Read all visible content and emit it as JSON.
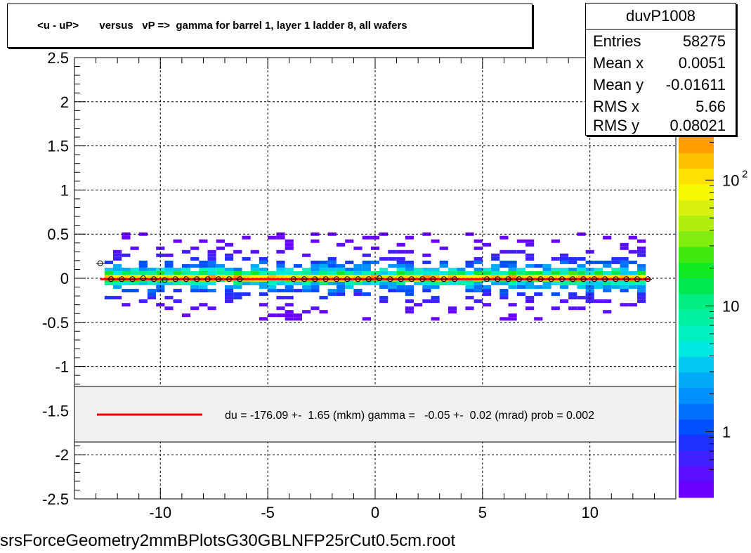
{
  "title": "<u - uP>       versus   vP =>  gamma for barrel 1, layer 1 ladder 8, all wafers",
  "stats": {
    "name": "duvP1008",
    "rows": [
      {
        "key": "Entries",
        "value": "58275"
      },
      {
        "key": "Mean x",
        "value": "0.0051"
      },
      {
        "key": "Mean y",
        "value": "-0.01611"
      },
      {
        "key": "RMS x",
        "value": "5.66"
      },
      {
        "key": "RMS y",
        "value": "0.08021"
      }
    ]
  },
  "fit_legend": "du = -176.09 +-  1.65 (mkm) gamma =   -0.05 +-  0.02 (mrad) prob = 0.002",
  "footer": "srsForceGeometry2mmBPlotsG30GBLNFP25rCut0.5cm.root",
  "colors": {
    "fit_line": "#ff0000",
    "legend_bg": "#f0f0f0",
    "grid": "#000000"
  },
  "chart_data": {
    "type": "heatmap",
    "title": "<u - uP>       versus   vP =>  gamma for barrel 1, layer 1 ladder 8, all wafers",
    "xlabel": "",
    "ylabel": "",
    "xlim": [
      -14,
      14
    ],
    "ylim": [
      -2.5,
      2.5
    ],
    "x_ticks": [
      -10,
      -5,
      0,
      5,
      10
    ],
    "y_ticks": [
      2.5,
      2,
      1.5,
      1,
      0.5,
      0,
      -0.5,
      -1,
      -1.5,
      -2,
      -2.5
    ],
    "grid": true,
    "z_scale": "log",
    "colorbar_ticks": [
      {
        "label": "1",
        "value": 1
      },
      {
        "label": "10",
        "value": 10
      },
      {
        "label": "10",
        "value": 100,
        "exponent": "2"
      }
    ],
    "fit": {
      "type": "line",
      "x0": -12.8,
      "x1": 12.8,
      "y0": -0.01,
      "y1": -0.01,
      "color": "#ff0000"
    },
    "profile_points": {
      "x": [
        -12.8,
        -12.3,
        -11.8,
        -11.3,
        -10.8,
        -10.3,
        -9.8,
        -9.3,
        -8.8,
        -8.3,
        -7.8,
        -7.3,
        -6.8,
        -6.3,
        -3.8,
        -3.3,
        -2.8,
        -2.3,
        -1.8,
        -1.3,
        -0.8,
        -0.3,
        0.2,
        0.7,
        1.2,
        1.7,
        2.2,
        2.7,
        3.2,
        3.7,
        5.2,
        5.7,
        6.2,
        6.7,
        7.2,
        7.7,
        8.2,
        8.7,
        9.2,
        9.7,
        10.2,
        10.7,
        11.2,
        11.7,
        12.2,
        12.7
      ],
      "y": [
        0.17,
        -0.01,
        -0.01,
        -0.01,
        0.0,
        -0.01,
        -0.02,
        -0.01,
        -0.01,
        -0.01,
        -0.01,
        -0.01,
        -0.01,
        -0.01,
        -0.01,
        -0.01,
        -0.01,
        -0.01,
        -0.01,
        -0.01,
        -0.01,
        -0.01,
        0.0,
        -0.01,
        -0.01,
        -0.01,
        -0.01,
        -0.01,
        -0.01,
        -0.01,
        -0.01,
        -0.01,
        -0.01,
        -0.01,
        -0.01,
        -0.01,
        -0.01,
        -0.01,
        -0.01,
        -0.01,
        -0.01,
        -0.01,
        -0.01,
        -0.01,
        -0.01,
        -0.01
      ]
    }
  }
}
